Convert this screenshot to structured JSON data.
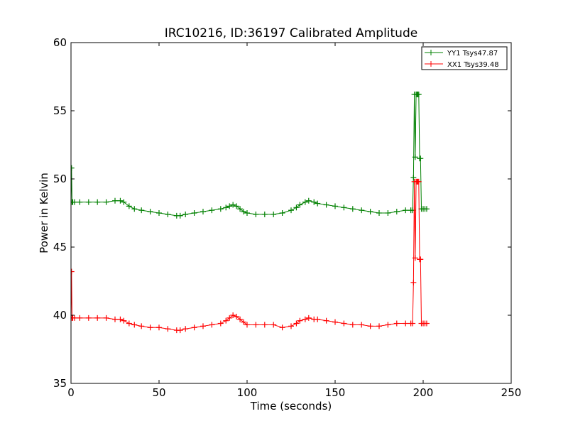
{
  "chart_data": {
    "type": "line",
    "title": "IRC10216, ID:36197 Calibrated Amplitude",
    "xlabel": "Time (seconds)",
    "ylabel": "Power in Kelvin",
    "xlim": [
      0,
      250
    ],
    "ylim": [
      35,
      60
    ],
    "xticks": [
      "0",
      "50",
      "100",
      "150",
      "200",
      "250"
    ],
    "yticks": [
      "35",
      "40",
      "45",
      "50",
      "55",
      "60"
    ],
    "grid": false,
    "legend_position": "top-right",
    "series": [
      {
        "name": "YY1 Tsys47.87",
        "color": "#008000",
        "marker": "+",
        "x": [
          0,
          0.3,
          0.6,
          1,
          2,
          5,
          10,
          15,
          20,
          25,
          28,
          30,
          33,
          36,
          40,
          45,
          50,
          55,
          60,
          62,
          65,
          70,
          75,
          80,
          85,
          88,
          90,
          92,
          94,
          96,
          98,
          100,
          105,
          110,
          115,
          120,
          125,
          128,
          130,
          133,
          135,
          138,
          140,
          145,
          150,
          155,
          160,
          165,
          170,
          175,
          180,
          185,
          190,
          193,
          194,
          194.5,
          195,
          195.5,
          196,
          196.5,
          197,
          197.5,
          198,
          198.5,
          199,
          200,
          201,
          202
        ],
        "y": [
          48.3,
          50.8,
          48.3,
          48.3,
          48.3,
          48.3,
          48.3,
          48.3,
          48.3,
          48.4,
          48.4,
          48.3,
          48.0,
          47.8,
          47.7,
          47.6,
          47.5,
          47.4,
          47.3,
          47.3,
          47.4,
          47.5,
          47.6,
          47.7,
          47.8,
          47.9,
          48.0,
          48.1,
          48.0,
          47.8,
          47.6,
          47.5,
          47.4,
          47.4,
          47.4,
          47.5,
          47.7,
          47.9,
          48.1,
          48.3,
          48.4,
          48.3,
          48.2,
          48.1,
          48.0,
          47.9,
          47.8,
          47.7,
          47.6,
          47.5,
          47.5,
          47.6,
          47.7,
          47.7,
          47.7,
          50.1,
          56.2,
          51.6,
          56.2,
          56.2,
          56.2,
          56.2,
          51.5,
          51.5,
          47.8,
          47.8,
          47.8,
          47.8
        ]
      },
      {
        "name": "XX1 Tsys39.48",
        "color": "#ff0000",
        "marker": "+",
        "x": [
          0,
          0.3,
          0.6,
          1,
          2,
          5,
          10,
          15,
          20,
          25,
          28,
          30,
          33,
          36,
          40,
          45,
          50,
          55,
          60,
          62,
          65,
          70,
          75,
          80,
          85,
          88,
          90,
          92,
          94,
          96,
          98,
          100,
          105,
          110,
          115,
          120,
          125,
          128,
          130,
          133,
          135,
          138,
          140,
          145,
          150,
          155,
          160,
          165,
          170,
          175,
          180,
          185,
          190,
          193,
          194,
          194.5,
          195,
          195.5,
          196,
          196.5,
          197,
          197.5,
          198,
          198.5,
          199,
          200,
          201,
          202
        ],
        "y": [
          39.8,
          43.2,
          39.8,
          39.8,
          39.8,
          39.8,
          39.8,
          39.8,
          39.8,
          39.7,
          39.7,
          39.6,
          39.4,
          39.3,
          39.2,
          39.1,
          39.1,
          39.0,
          38.9,
          38.9,
          39.0,
          39.1,
          39.2,
          39.3,
          39.4,
          39.6,
          39.8,
          40.0,
          39.9,
          39.7,
          39.5,
          39.3,
          39.3,
          39.3,
          39.3,
          39.1,
          39.2,
          39.4,
          39.6,
          39.7,
          39.8,
          39.7,
          39.7,
          39.6,
          39.5,
          39.4,
          39.3,
          39.3,
          39.2,
          39.2,
          39.3,
          39.4,
          39.4,
          39.4,
          39.4,
          42.4,
          49.8,
          44.2,
          49.8,
          49.8,
          49.8,
          49.8,
          44.1,
          44.1,
          39.4,
          39.4,
          39.4,
          39.4
        ]
      }
    ]
  }
}
